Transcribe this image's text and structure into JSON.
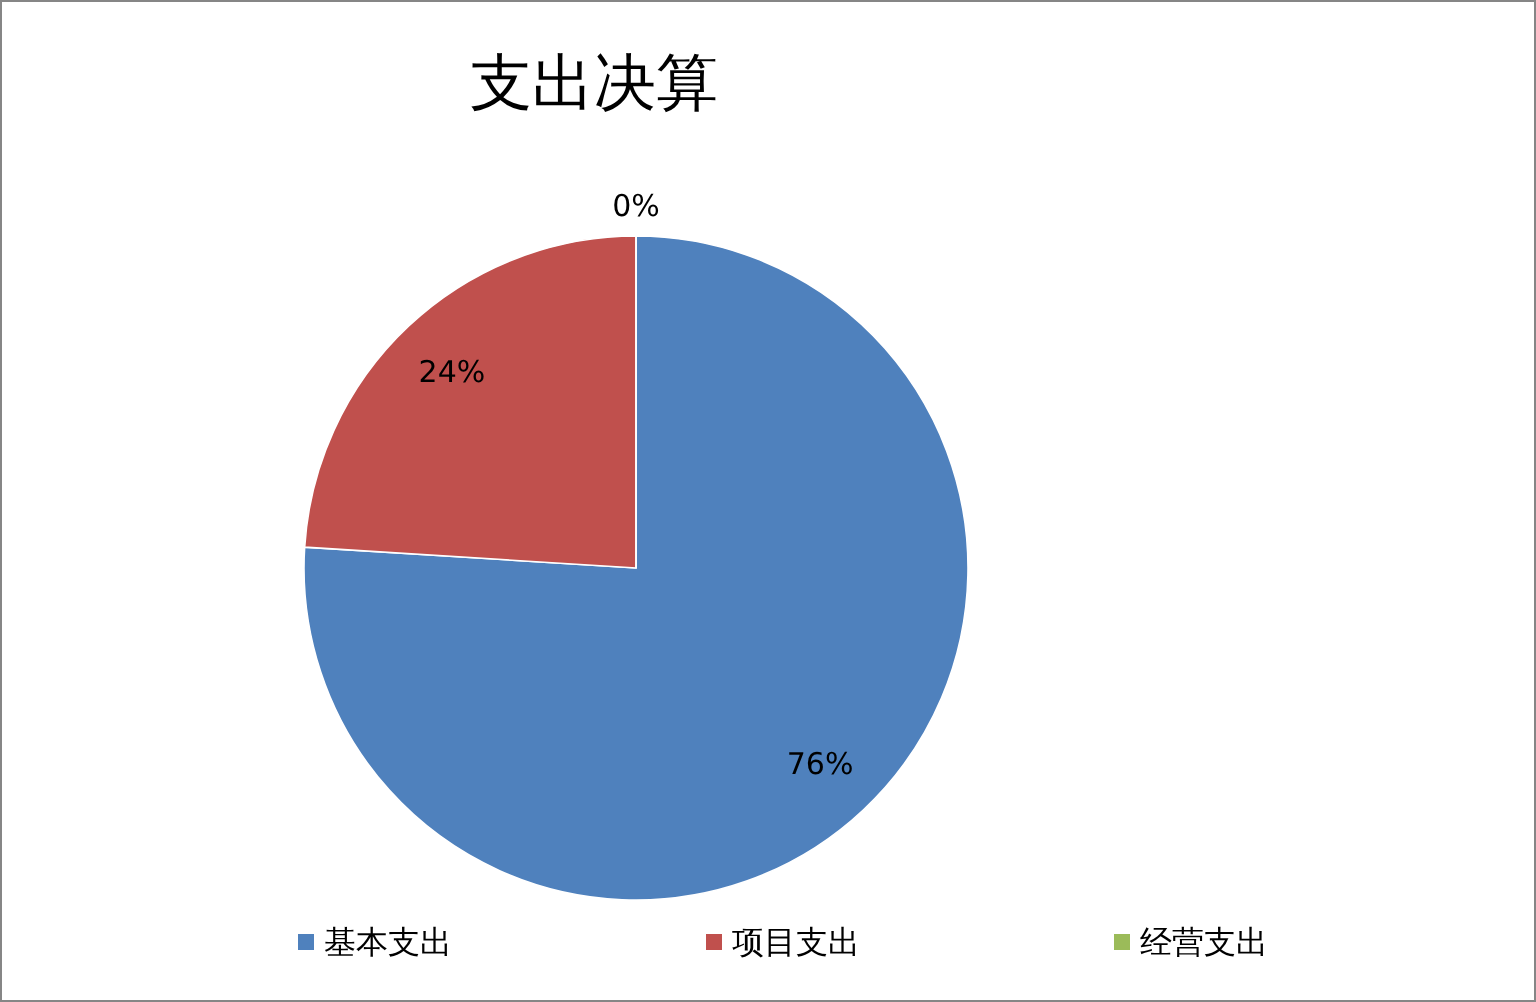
{
  "chart_data": {
    "type": "pie",
    "title": "支出决算",
    "categories": [
      "基本支出",
      "项目支出",
      "经营支出"
    ],
    "values": [
      76,
      24,
      0
    ],
    "colors": [
      "#4f81bd",
      "#c0504d",
      "#9bbb59"
    ],
    "value_labels": [
      "76%",
      "24%",
      "0%"
    ],
    "legend": "bottom"
  }
}
